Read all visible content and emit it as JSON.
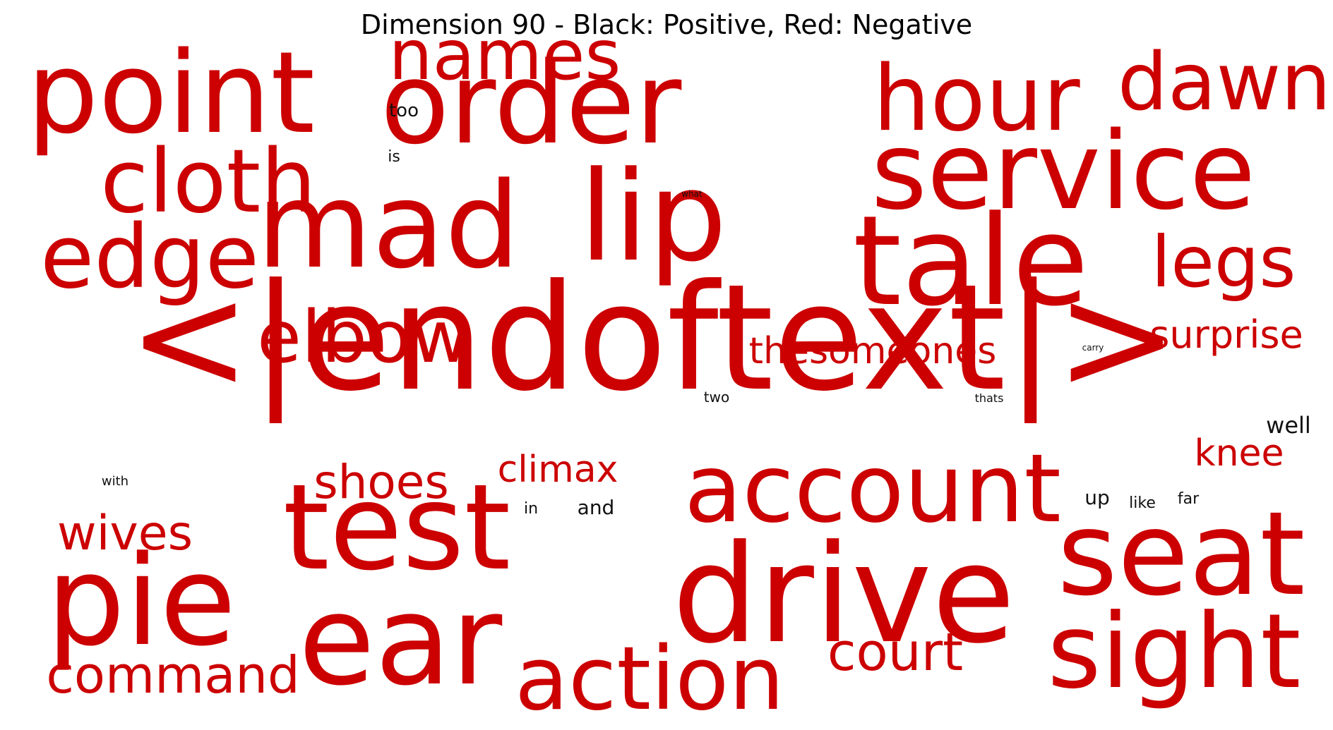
{
  "title": "Dimension 90 - Black: Positive, Red: Negative",
  "colors": {
    "positive": "#111111",
    "negative": "#cc0000",
    "background": "#ffffff"
  },
  "words": {
    "endoftext": "<|endoftext|>",
    "point": "point",
    "order": "order",
    "names": "names",
    "hour": "hour",
    "dawn": "dawn",
    "service": "service",
    "cloth": "cloth",
    "mad": "mad",
    "lip": "lip",
    "tale": "tale",
    "edge": "edge",
    "legs": "legs",
    "elbow": "elbow",
    "thesomeones": "thesomeones",
    "surprise": "surprise",
    "account": "account",
    "knee": "knee",
    "shoes": "shoes",
    "climax": "climax",
    "test": "test",
    "drive": "drive",
    "seat": "seat",
    "wives": "wives",
    "pie": "pie",
    "ear": "ear",
    "sight": "sight",
    "court": "court",
    "command": "command",
    "action": "action",
    "too": "too",
    "is": "is",
    "what": "what",
    "carry": "carry",
    "two": "two",
    "thats": "thats",
    "well": "well",
    "with": "with",
    "in": "in",
    "and": "and",
    "up": "up",
    "like": "like",
    "far": "far"
  }
}
